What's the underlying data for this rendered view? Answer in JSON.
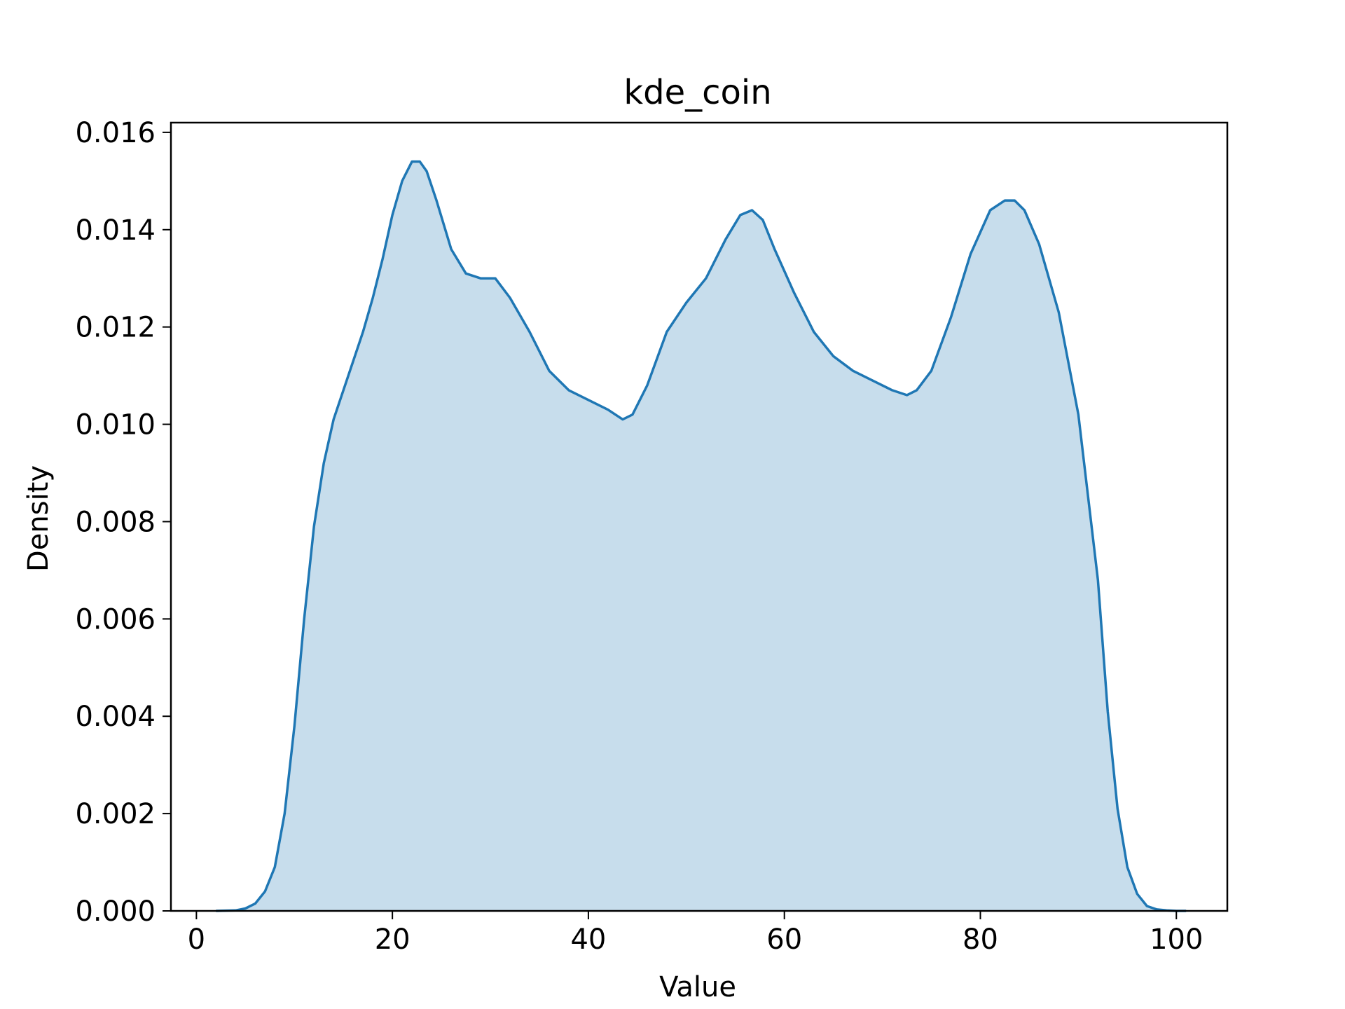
{
  "chart_data": {
    "type": "area",
    "title": "kde_coin",
    "xlabel": "Value",
    "ylabel": "Density",
    "xlim": [
      -2.6,
      105.2
    ],
    "ylim": [
      0,
      0.0162
    ],
    "xticks": [
      0,
      20,
      40,
      60,
      80,
      100
    ],
    "xtick_labels": [
      "0",
      "20",
      "40",
      "60",
      "80",
      "100"
    ],
    "yticks": [
      0,
      0.002,
      0.004,
      0.006,
      0.008,
      0.01,
      0.012,
      0.014,
      0.016
    ],
    "ytick_labels": [
      "0.000",
      "0.002",
      "0.004",
      "0.006",
      "0.008",
      "0.010",
      "0.012",
      "0.014",
      "0.016"
    ],
    "grid": false,
    "line_color": "#1f77b4",
    "fill_color": "#1f77b4",
    "fill_opacity": 0.25,
    "series": [
      {
        "x": [
          2,
          4,
          5,
          6,
          7,
          8,
          9,
          10,
          11,
          12,
          13,
          14,
          15,
          16,
          17,
          18,
          19,
          20,
          21,
          22,
          22.8,
          23.5,
          24.5,
          26,
          27.5,
          29,
          30.5,
          32,
          34,
          36,
          38,
          40,
          42,
          43.5,
          44.5,
          46,
          48,
          50,
          52,
          54,
          55.5,
          56.7,
          57.8,
          59,
          61,
          63,
          65,
          67,
          69,
          71,
          72.5,
          73.5,
          75,
          77,
          79,
          81,
          82.5,
          83.5,
          84.5,
          86,
          88,
          90,
          92,
          93,
          94,
          95,
          96,
          97,
          98,
          99,
          100,
          101
        ],
        "y": [
          0,
          1e-05,
          5e-05,
          0.00015,
          0.0004,
          0.0009,
          0.002,
          0.0038,
          0.006,
          0.0079,
          0.0092,
          0.0101,
          0.0107,
          0.0113,
          0.0119,
          0.0126,
          0.0134,
          0.0143,
          0.015,
          0.0154,
          0.0154,
          0.0152,
          0.0146,
          0.0136,
          0.0131,
          0.013,
          0.013,
          0.0126,
          0.0119,
          0.0111,
          0.0107,
          0.0105,
          0.0103,
          0.0101,
          0.0102,
          0.0108,
          0.0119,
          0.0125,
          0.013,
          0.0138,
          0.0143,
          0.0144,
          0.0142,
          0.0136,
          0.0127,
          0.0119,
          0.0114,
          0.0111,
          0.0109,
          0.0107,
          0.0106,
          0.0107,
          0.0111,
          0.0122,
          0.0135,
          0.0144,
          0.0146,
          0.0146,
          0.0144,
          0.0137,
          0.0123,
          0.0102,
          0.0068,
          0.0041,
          0.0021,
          0.0009,
          0.00035,
          0.0001,
          3e-05,
          1e-05,
          0,
          0
        ]
      }
    ]
  }
}
